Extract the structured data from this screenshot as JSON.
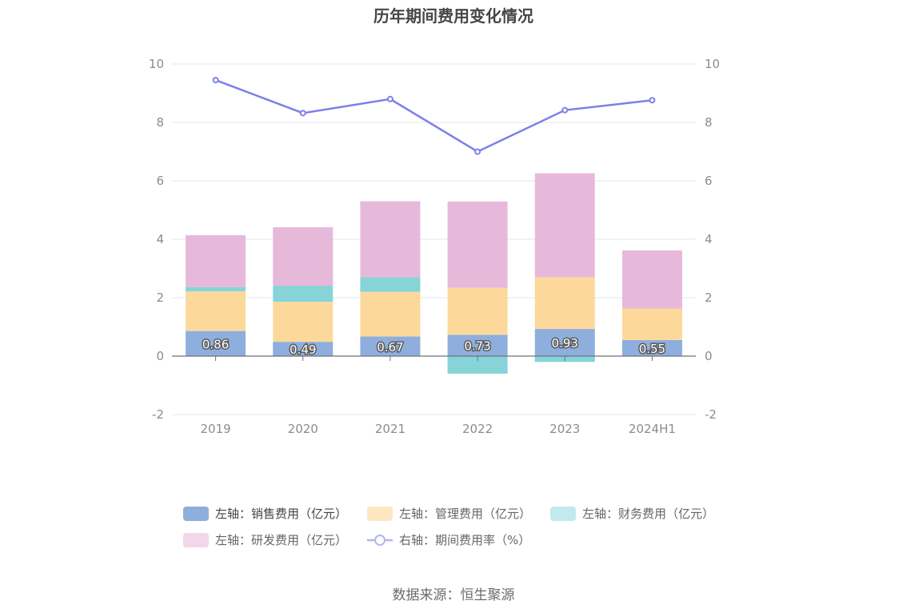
{
  "chart_data": {
    "type": "bar",
    "title": "历年期间费用变化情况",
    "categories": [
      "2019",
      "2020",
      "2021",
      "2022",
      "2023",
      "2024H1"
    ],
    "left_axis": {
      "ylim": [
        -2,
        10
      ],
      "ticks": [
        "-2",
        "0",
        "2",
        "4",
        "6",
        "8",
        "10"
      ]
    },
    "right_axis": {
      "ylim": [
        -2,
        10
      ],
      "ticks": [
        "-2",
        "0",
        "2",
        "4",
        "6",
        "8",
        "10"
      ]
    },
    "series": [
      {
        "name": "左轴：销售费用（亿元）",
        "type": "stacked-bar",
        "axis": "left",
        "color": "#8eaedd",
        "values": [
          0.86,
          0.49,
          0.67,
          0.73,
          0.93,
          0.55
        ],
        "labels": [
          "0.86",
          "0.49",
          "0.67",
          "0.73",
          "0.93",
          "0.55"
        ]
      },
      {
        "name": "左轴：管理费用（亿元）",
        "type": "stacked-bar",
        "axis": "left",
        "color": "#fcd99b",
        "values": [
          1.36,
          1.37,
          1.53,
          1.61,
          1.77,
          1.08
        ]
      },
      {
        "name": "左轴：财务费用（亿元）",
        "type": "stacked-bar",
        "axis": "left",
        "color": "#86d4d8",
        "values": [
          0.14,
          0.55,
          0.5,
          -0.6,
          -0.2,
          0.0
        ]
      },
      {
        "name": "左轴：研发费用（亿元）",
        "type": "stacked-bar",
        "axis": "left",
        "color": "#e6b9da",
        "values": [
          1.78,
          2.0,
          2.6,
          2.95,
          3.56,
          1.99
        ]
      },
      {
        "name": "右轴：期间费用率（%）",
        "type": "line",
        "axis": "right",
        "color": "#7f7fe8",
        "values": [
          9.45,
          8.32,
          8.8,
          7.0,
          8.42,
          8.76
        ]
      }
    ],
    "grid": true,
    "legend_position": "bottom"
  },
  "source_text": "数据来源：恒生聚源"
}
